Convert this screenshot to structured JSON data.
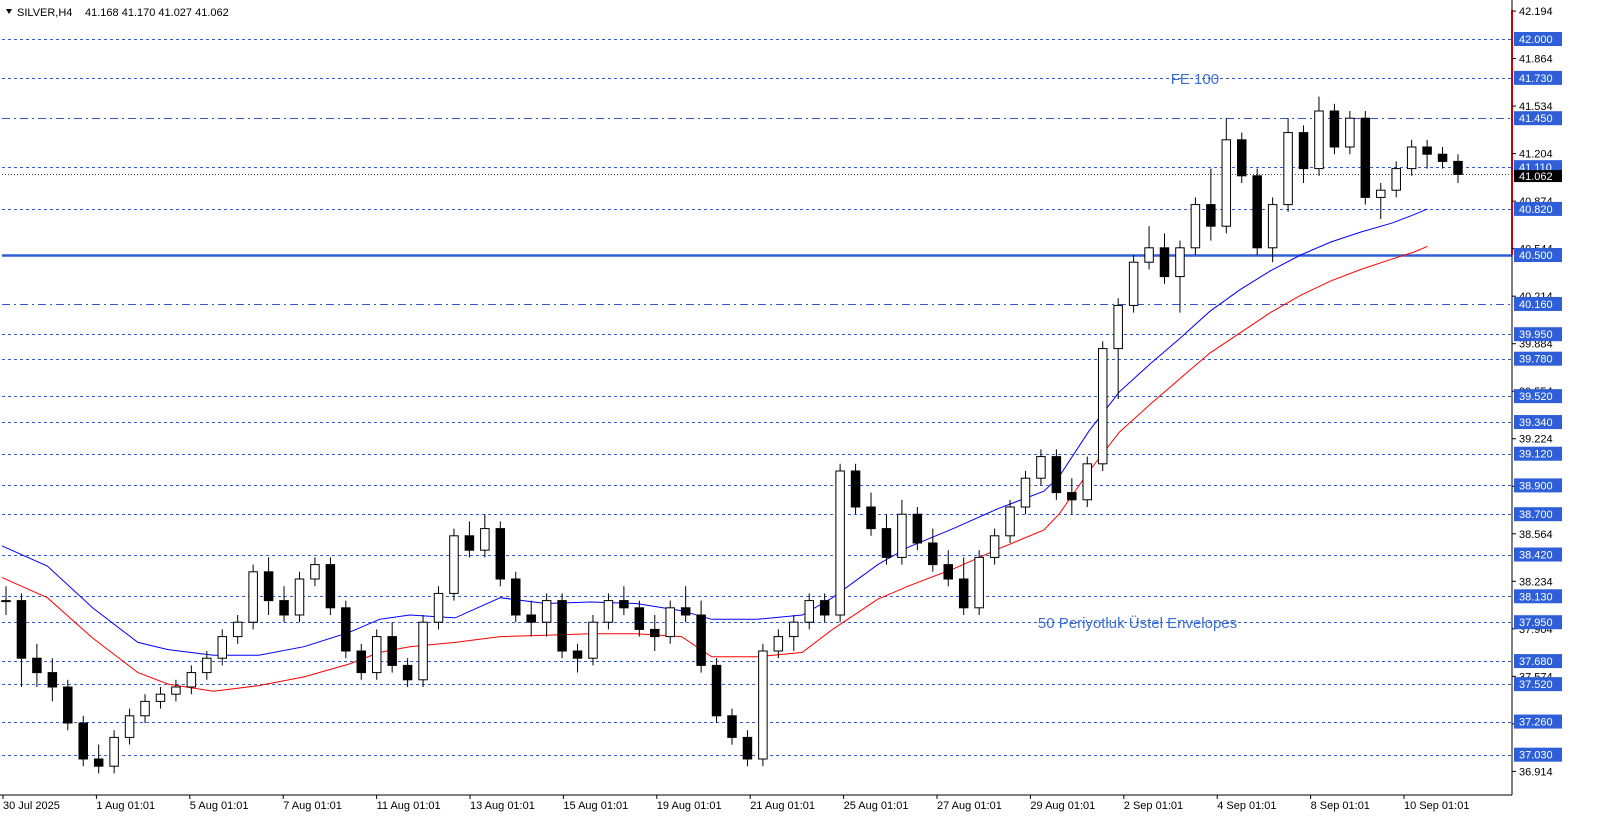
{
  "header": {
    "symbol": "SILVER,H4",
    "ohlc": "41.168 41.170 41.027 41.062"
  },
  "colors": {
    "grid_blue": "#3358c8",
    "main_line": "#2e5fd9",
    "envelope_upper": "#0000ff",
    "envelope_lower": "#ff0000",
    "tag_bg": "#2e5fd9",
    "border_red": "#cc0000",
    "current_price_bg": "#000000",
    "annotation": "#3b6fd6"
  },
  "chart_data": {
    "type": "candlestick",
    "symbol": "SILVER",
    "timeframe": "H4",
    "ylim": [
      36.75,
      42.25
    ],
    "axis_ticks": [
      "42.194",
      "41.864",
      "41.534",
      "41.204",
      "40.874",
      "40.544",
      "40.214",
      "39.884",
      "39.554",
      "39.224",
      "38.894",
      "38.564",
      "38.234",
      "37.904",
      "37.574",
      "37.244",
      "36.914"
    ],
    "x_labels": [
      "30 Jul 2025",
      "1 Aug 01:01",
      "5 Aug 01:01",
      "7 Aug 01:01",
      "11 Aug 01:01",
      "13 Aug 01:01",
      "15 Aug 01:01",
      "19 Aug 01:01",
      "21 Aug 01:01",
      "25 Aug 01:01",
      "27 Aug 01:01",
      "29 Aug 01:01",
      "2 Sep 01:01",
      "4 Sep 01:01",
      "8 Sep 01:01",
      "10 Sep 01:01"
    ],
    "levels": [
      {
        "value": "42.000",
        "style": "dotted"
      },
      {
        "value": "41.730",
        "style": "dotted"
      },
      {
        "value": "41.450",
        "style": "dashdot"
      },
      {
        "value": "41.110",
        "style": "dotted"
      },
      {
        "value": "40.820",
        "style": "dotted"
      },
      {
        "value": "40.500",
        "style": "solid"
      },
      {
        "value": "40.160",
        "style": "dashdot"
      },
      {
        "value": "39.950",
        "style": "dotted"
      },
      {
        "value": "39.780",
        "style": "dotted"
      },
      {
        "value": "39.520",
        "style": "dotted"
      },
      {
        "value": "39.340",
        "style": "dotted"
      },
      {
        "value": "39.120",
        "style": "dotted"
      },
      {
        "value": "38.900",
        "style": "dotted"
      },
      {
        "value": "38.700",
        "style": "dotted"
      },
      {
        "value": "38.420",
        "style": "dotted"
      },
      {
        "value": "38.130",
        "style": "dotted"
      },
      {
        "value": "37.950",
        "style": "dotted"
      },
      {
        "value": "37.680",
        "style": "dotted"
      },
      {
        "value": "37.520",
        "style": "dotted"
      },
      {
        "value": "37.260",
        "style": "dotted"
      },
      {
        "value": "37.030",
        "style": "dotted"
      }
    ],
    "current_price": "41.062",
    "annotations": [
      {
        "text": "FE 100",
        "price": 41.73,
        "x_frac": 0.79
      },
      {
        "text": "50 Periyotluk Üstel Envelopes",
        "price": 37.95,
        "x_frac": 0.752
      }
    ],
    "envelope_upper": [
      [
        0,
        38.48
      ],
      [
        0.03,
        38.34
      ],
      [
        0.06,
        38.05
      ],
      [
        0.09,
        37.81
      ],
      [
        0.11,
        37.76
      ],
      [
        0.14,
        37.72
      ],
      [
        0.17,
        37.72
      ],
      [
        0.2,
        37.78
      ],
      [
        0.23,
        37.88
      ],
      [
        0.25,
        37.97
      ],
      [
        0.27,
        38.0
      ],
      [
        0.3,
        37.98
      ],
      [
        0.33,
        38.12
      ],
      [
        0.36,
        38.08
      ],
      [
        0.39,
        38.09
      ],
      [
        0.42,
        38.08
      ],
      [
        0.45,
        38.03
      ],
      [
        0.47,
        37.97
      ],
      [
        0.5,
        37.97
      ],
      [
        0.53,
        38.0
      ],
      [
        0.55,
        38.12
      ],
      [
        0.58,
        38.35
      ],
      [
        0.6,
        38.47
      ],
      [
        0.63,
        38.6
      ],
      [
        0.66,
        38.74
      ],
      [
        0.69,
        38.86
      ],
      [
        0.7,
        38.96
      ],
      [
        0.72,
        39.28
      ],
      [
        0.74,
        39.55
      ],
      [
        0.76,
        39.74
      ],
      [
        0.78,
        39.92
      ],
      [
        0.8,
        40.11
      ],
      [
        0.82,
        40.26
      ],
      [
        0.84,
        40.39
      ],
      [
        0.86,
        40.5
      ],
      [
        0.88,
        40.59
      ],
      [
        0.9,
        40.66
      ],
      [
        0.92,
        40.72
      ],
      [
        0.935,
        40.78
      ],
      [
        0.944,
        40.82
      ]
    ],
    "envelope_lower": [
      [
        0,
        38.26
      ],
      [
        0.03,
        38.12
      ],
      [
        0.06,
        37.84
      ],
      [
        0.09,
        37.6
      ],
      [
        0.11,
        37.52
      ],
      [
        0.14,
        37.47
      ],
      [
        0.17,
        37.51
      ],
      [
        0.2,
        37.57
      ],
      [
        0.23,
        37.66
      ],
      [
        0.25,
        37.74
      ],
      [
        0.27,
        37.78
      ],
      [
        0.3,
        37.81
      ],
      [
        0.33,
        37.85
      ],
      [
        0.36,
        37.86
      ],
      [
        0.39,
        37.87
      ],
      [
        0.42,
        37.87
      ],
      [
        0.45,
        37.85
      ],
      [
        0.47,
        37.71
      ],
      [
        0.5,
        37.71
      ],
      [
        0.53,
        37.74
      ],
      [
        0.55,
        37.9
      ],
      [
        0.58,
        38.11
      ],
      [
        0.6,
        38.2
      ],
      [
        0.63,
        38.32
      ],
      [
        0.66,
        38.46
      ],
      [
        0.69,
        38.59
      ],
      [
        0.7,
        38.7
      ],
      [
        0.72,
        39.0
      ],
      [
        0.74,
        39.27
      ],
      [
        0.76,
        39.46
      ],
      [
        0.78,
        39.64
      ],
      [
        0.8,
        39.82
      ],
      [
        0.82,
        39.96
      ],
      [
        0.84,
        40.1
      ],
      [
        0.86,
        40.22
      ],
      [
        0.88,
        40.32
      ],
      [
        0.9,
        40.4
      ],
      [
        0.92,
        40.47
      ],
      [
        0.935,
        40.52
      ],
      [
        0.944,
        40.56
      ]
    ],
    "candles": [
      [
        38.1,
        38.2,
        38.0,
        38.1
      ],
      [
        38.1,
        38.15,
        37.5,
        37.7
      ],
      [
        37.7,
        37.8,
        37.5,
        37.6
      ],
      [
        37.6,
        37.7,
        37.4,
        37.5
      ],
      [
        37.5,
        37.55,
        37.2,
        37.25
      ],
      [
        37.25,
        37.3,
        36.95,
        37.0
      ],
      [
        37.0,
        37.1,
        36.9,
        36.95
      ],
      [
        36.95,
        37.2,
        36.9,
        37.15
      ],
      [
        37.15,
        37.35,
        37.1,
        37.3
      ],
      [
        37.3,
        37.45,
        37.25,
        37.4
      ],
      [
        37.4,
        37.5,
        37.35,
        37.45
      ],
      [
        37.45,
        37.55,
        37.4,
        37.5
      ],
      [
        37.5,
        37.65,
        37.45,
        37.6
      ],
      [
        37.6,
        37.75,
        37.55,
        37.7
      ],
      [
        37.7,
        37.9,
        37.65,
        37.85
      ],
      [
        37.85,
        38.0,
        37.8,
        37.95
      ],
      [
        37.95,
        38.35,
        37.9,
        38.3
      ],
      [
        38.3,
        38.4,
        38.0,
        38.1
      ],
      [
        38.1,
        38.2,
        37.95,
        38.0
      ],
      [
        38.0,
        38.3,
        37.95,
        38.25
      ],
      [
        38.25,
        38.4,
        38.2,
        38.35
      ],
      [
        38.35,
        38.4,
        38.0,
        38.05
      ],
      [
        38.05,
        38.1,
        37.7,
        37.75
      ],
      [
        37.75,
        37.8,
        37.55,
        37.6
      ],
      [
        37.6,
        37.9,
        37.55,
        37.85
      ],
      [
        37.85,
        37.95,
        37.6,
        37.65
      ],
      [
        37.65,
        37.7,
        37.5,
        37.55
      ],
      [
        37.55,
        38.0,
        37.5,
        37.95
      ],
      [
        37.95,
        38.2,
        37.9,
        38.15
      ],
      [
        38.15,
        38.6,
        38.1,
        38.55
      ],
      [
        38.55,
        38.65,
        38.4,
        38.45
      ],
      [
        38.45,
        38.7,
        38.4,
        38.6
      ],
      [
        38.6,
        38.65,
        38.2,
        38.25
      ],
      [
        38.25,
        38.3,
        37.95,
        38.0
      ],
      [
        38.0,
        38.1,
        37.85,
        37.95
      ],
      [
        37.95,
        38.15,
        37.85,
        38.1
      ],
      [
        38.1,
        38.15,
        37.7,
        37.75
      ],
      [
        37.75,
        37.8,
        37.6,
        37.7
      ],
      [
        37.7,
        38.0,
        37.65,
        37.95
      ],
      [
        37.95,
        38.15,
        37.9,
        38.1
      ],
      [
        38.1,
        38.2,
        38.0,
        38.05
      ],
      [
        38.05,
        38.1,
        37.85,
        37.9
      ],
      [
        37.9,
        38.0,
        37.75,
        37.85
      ],
      [
        37.85,
        38.1,
        37.8,
        38.05
      ],
      [
        38.05,
        38.2,
        37.95,
        38.0
      ],
      [
        38.0,
        38.1,
        37.6,
        37.65
      ],
      [
        37.65,
        37.7,
        37.25,
        37.3
      ],
      [
        37.3,
        37.35,
        37.1,
        37.15
      ],
      [
        37.15,
        37.2,
        36.95,
        37.0
      ],
      [
        37.0,
        37.8,
        36.95,
        37.75
      ],
      [
        37.75,
        37.9,
        37.7,
        37.85
      ],
      [
        37.85,
        38.0,
        37.75,
        37.95
      ],
      [
        37.95,
        38.15,
        37.9,
        38.1
      ],
      [
        38.1,
        38.15,
        37.95,
        38.0
      ],
      [
        38.0,
        39.05,
        37.95,
        39.0
      ],
      [
        39.0,
        39.05,
        38.7,
        38.75
      ],
      [
        38.75,
        38.85,
        38.55,
        38.6
      ],
      [
        38.6,
        38.7,
        38.35,
        38.4
      ],
      [
        38.4,
        38.8,
        38.35,
        38.7
      ],
      [
        38.7,
        38.75,
        38.45,
        38.5
      ],
      [
        38.5,
        38.6,
        38.3,
        38.35
      ],
      [
        38.35,
        38.45,
        38.2,
        38.25
      ],
      [
        38.25,
        38.4,
        38.0,
        38.05
      ],
      [
        38.05,
        38.45,
        38.0,
        38.4
      ],
      [
        38.4,
        38.6,
        38.35,
        38.55
      ],
      [
        38.55,
        38.8,
        38.5,
        38.75
      ],
      [
        38.75,
        39.0,
        38.7,
        38.95
      ],
      [
        38.95,
        39.15,
        38.9,
        39.1
      ],
      [
        39.1,
        39.15,
        38.8,
        38.85
      ],
      [
        38.85,
        38.95,
        38.7,
        38.8
      ],
      [
        38.8,
        39.1,
        38.75,
        39.05
      ],
      [
        39.05,
        39.9,
        39.0,
        39.85
      ],
      [
        39.85,
        40.2,
        39.5,
        40.15
      ],
      [
        40.15,
        40.5,
        40.1,
        40.45
      ],
      [
        40.45,
        40.7,
        40.4,
        40.55
      ],
      [
        40.55,
        40.65,
        40.3,
        40.35
      ],
      [
        40.35,
        40.6,
        40.1,
        40.55
      ],
      [
        40.55,
        40.9,
        40.5,
        40.85
      ],
      [
        40.85,
        41.1,
        40.6,
        40.7
      ],
      [
        40.7,
        41.45,
        40.65,
        41.3
      ],
      [
        41.3,
        41.35,
        41.0,
        41.05
      ],
      [
        41.05,
        41.1,
        40.5,
        40.55
      ],
      [
        40.55,
        40.9,
        40.45,
        40.85
      ],
      [
        40.85,
        41.45,
        40.8,
        41.35
      ],
      [
        41.35,
        41.4,
        41.0,
        41.1
      ],
      [
        41.1,
        41.6,
        41.05,
        41.5
      ],
      [
        41.5,
        41.55,
        41.2,
        41.25
      ],
      [
        41.25,
        41.5,
        41.2,
        41.45
      ],
      [
        41.45,
        41.5,
        40.85,
        40.9
      ],
      [
        40.9,
        41.0,
        40.75,
        40.95
      ],
      [
        40.95,
        41.15,
        40.9,
        41.1
      ],
      [
        41.1,
        41.3,
        41.05,
        41.25
      ],
      [
        41.25,
        41.3,
        41.1,
        41.2
      ],
      [
        41.2,
        41.25,
        41.1,
        41.15
      ],
      [
        41.15,
        41.2,
        41.0,
        41.06
      ]
    ]
  }
}
